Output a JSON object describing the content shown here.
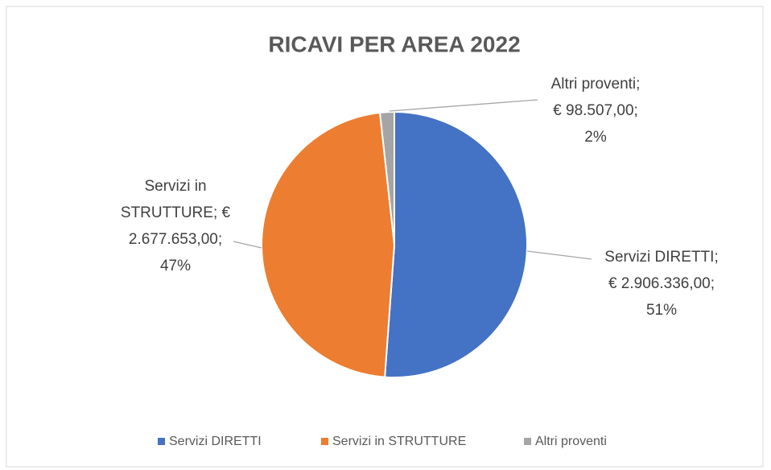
{
  "chart_data": {
    "type": "pie",
    "title": "RICAVI PER AREA 2022",
    "categories": [
      "Servizi DIRETTI",
      "Servizi in STRUTTURE",
      "Altri proventi"
    ],
    "values": [
      2906336,
      2677653,
      98507
    ],
    "colors": [
      "#4472c4",
      "#ed7d31",
      "#a5a5a5"
    ],
    "label_lines": [
      [
        "Servizi DIRETTI;",
        "€ 2.906.336,00;"
      ],
      [
        "Servizi in",
        "STRUTTURE; €",
        "2.677.653,00;"
      ],
      [
        "Altri proventi;",
        "€ 98.507,00;"
      ]
    ],
    "percents": [
      51,
      47,
      2
    ],
    "percent_labels": [
      "51%",
      "47%",
      "2%"
    ],
    "legend": "bottom"
  }
}
